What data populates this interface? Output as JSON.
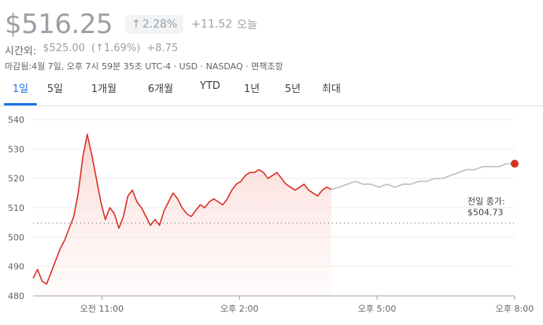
{
  "header": {
    "price": "$516.25",
    "change_arrow": "↑",
    "change_percent": "2.28%",
    "change_amount": "+11.52",
    "period_label": "오늘"
  },
  "after_hours": {
    "label": "시간외:",
    "price": "$525.00",
    "percent": "(↑1.69%)",
    "amount": "+8.75"
  },
  "meta_line": "마감됨:4월 7일, 오후 7시 59분 35초 UTC-4 · USD · NASDAQ · 면책조항",
  "tabs": [
    "1일",
    "5일",
    "1개월",
    "6개월",
    "YTD",
    "1년",
    "5년",
    "최대"
  ],
  "active_tab": "1일",
  "colors": {
    "regular": "#d93025",
    "after_hours": "#bdbdbd",
    "fill": "#fce8e6",
    "tab_active": "#1a73e8"
  },
  "chart_data": {
    "type": "line",
    "ylim": [
      480,
      540
    ],
    "yticks": [
      "540",
      "530",
      "520",
      "510",
      "500",
      "490",
      "480"
    ],
    "xticks": [
      "오전 11:00",
      "오후 2:00",
      "오후 5:00",
      "오후 8:00"
    ],
    "previous_close": {
      "label": "전일 종가:",
      "value": "$504.73",
      "level": 504.73
    },
    "regular_session": {
      "time_range": [
        "오전 9:30",
        "오후 4:00"
      ],
      "values": [
        486,
        489,
        485,
        484,
        488,
        492,
        496,
        499,
        503,
        507,
        515,
        527,
        535,
        528,
        520,
        512,
        506,
        510,
        508,
        503,
        507,
        514,
        516,
        512,
        510,
        507,
        504,
        506,
        504,
        509,
        512,
        515,
        513,
        510,
        508,
        507,
        509,
        511,
        510,
        512,
        513,
        512,
        511,
        513,
        516,
        518,
        519,
        521,
        522,
        522,
        523,
        522,
        520,
        521,
        522,
        520,
        518,
        517,
        516,
        517,
        518,
        516,
        515,
        514,
        516,
        517,
        516.25
      ]
    },
    "after_hours_session": {
      "time_range": [
        "오후 4:00",
        "오후 8:00"
      ],
      "values": [
        516.25,
        517,
        518,
        519,
        518,
        518,
        517,
        518,
        517,
        518,
        518,
        519,
        519,
        520,
        520,
        521,
        522,
        523,
        523,
        524,
        524,
        524,
        525,
        525
      ]
    }
  }
}
